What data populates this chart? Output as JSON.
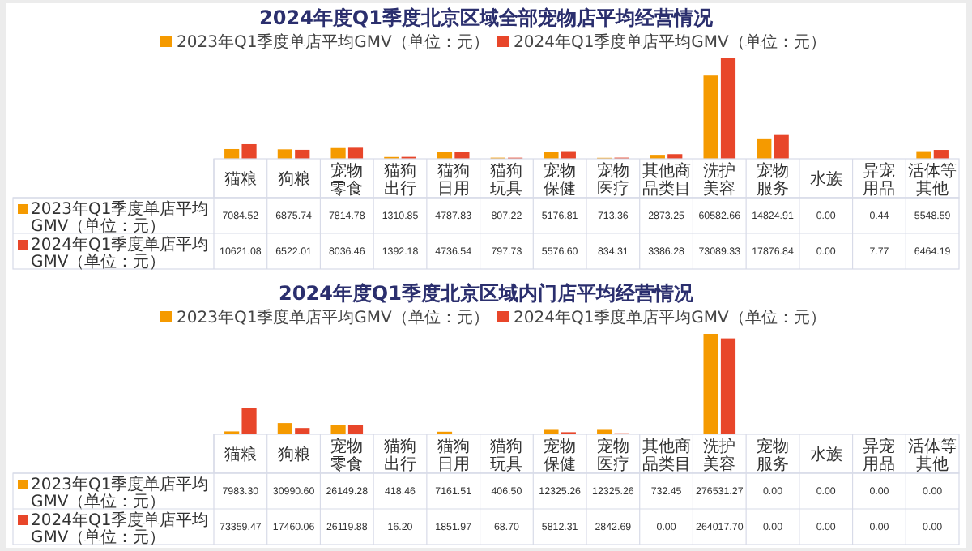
{
  "chart_data": [
    {
      "type": "bar",
      "title": "2024年度Q1季度北京区域全部宠物店平均经营情况",
      "legend": "top",
      "categories": [
        "猫粮",
        "狗粮",
        "宠物零食",
        "猫狗出行",
        "猫狗日用",
        "猫狗玩具",
        "宠物保健",
        "宠物医疗",
        "其他商品类目",
        "洗护美容",
        "宠物服务",
        "水族",
        "异宠用品",
        "活体等其他"
      ],
      "series": [
        {
          "name": "2023年Q1季度单店平均GMV（单位：元）",
          "color": "#f59a00",
          "values": [
            7084.52,
            6875.74,
            7814.78,
            1310.85,
            4787.83,
            807.22,
            5176.81,
            713.36,
            2873.25,
            60582.66,
            14824.91,
            0,
            0.44,
            5548.59
          ],
          "value_labels": [
            "7084.52",
            "6875.74",
            "7814.78",
            "1310.85",
            "4787.83",
            "807.22",
            "5176.81",
            "713.36",
            "2873.25",
            "60582.66",
            "14824.91",
            "0.00",
            "0.44",
            "5548.59"
          ]
        },
        {
          "name": "2024年Q1季度单店平均GMV（单位：元）",
          "color": "#e8462a",
          "values": [
            10621.08,
            6522.01,
            8036.46,
            1392.18,
            4736.54,
            797.73,
            5576.6,
            834.31,
            3386.28,
            73089.33,
            17876.84,
            0,
            7.77,
            6464.19
          ],
          "value_labels": [
            "10621.08",
            "6522.01",
            "8036.46",
            "1392.18",
            "4736.54",
            "797.73",
            "5576.60",
            "834.31",
            "3386.28",
            "73089.33",
            "17876.84",
            "0.00",
            "7.77",
            "6464.19"
          ]
        }
      ]
    },
    {
      "type": "bar",
      "title": "2024年度Q1季度北京区域内门店平均经营情况",
      "legend": "top",
      "categories": [
        "猫粮",
        "狗粮",
        "宠物零食",
        "猫狗出行",
        "猫狗日用",
        "猫狗玩具",
        "宠物保健",
        "宠物医疗",
        "其他商品类目",
        "洗护美容",
        "宠物服务",
        "水族",
        "异宠用品",
        "活体等其他"
      ],
      "series": [
        {
          "name": "2023年Q1季度单店平均GMV（单位：元）",
          "color": "#f59a00",
          "values": [
            7983.3,
            30990.6,
            26149.28,
            418.46,
            7161.51,
            406.5,
            12325.26,
            12325.26,
            732.45,
            276531.27,
            0,
            0,
            0,
            0
          ],
          "value_labels": [
            "7983.30",
            "30990.60",
            "26149.28",
            "418.46",
            "7161.51",
            "406.50",
            "12325.26",
            "12325.26",
            "732.45",
            "276531.27",
            "0.00",
            "0.00",
            "0.00",
            "0.00"
          ]
        },
        {
          "name": "2024年Q1季度单店平均GMV（单位：元）",
          "color": "#e8462a",
          "values": [
            73359.47,
            17460.06,
            26119.88,
            16.2,
            1851.97,
            68.7,
            5812.31,
            2842.69,
            0,
            264017.7,
            0,
            0,
            0,
            0
          ],
          "value_labels": [
            "73359.47",
            "17460.06",
            "26119.88",
            "16.20",
            "1851.97",
            "68.70",
            "5812.31",
            "2842.69",
            "0.00",
            "264017.70",
            "0.00",
            "0.00",
            "0.00",
            "0.00"
          ]
        }
      ]
    }
  ]
}
